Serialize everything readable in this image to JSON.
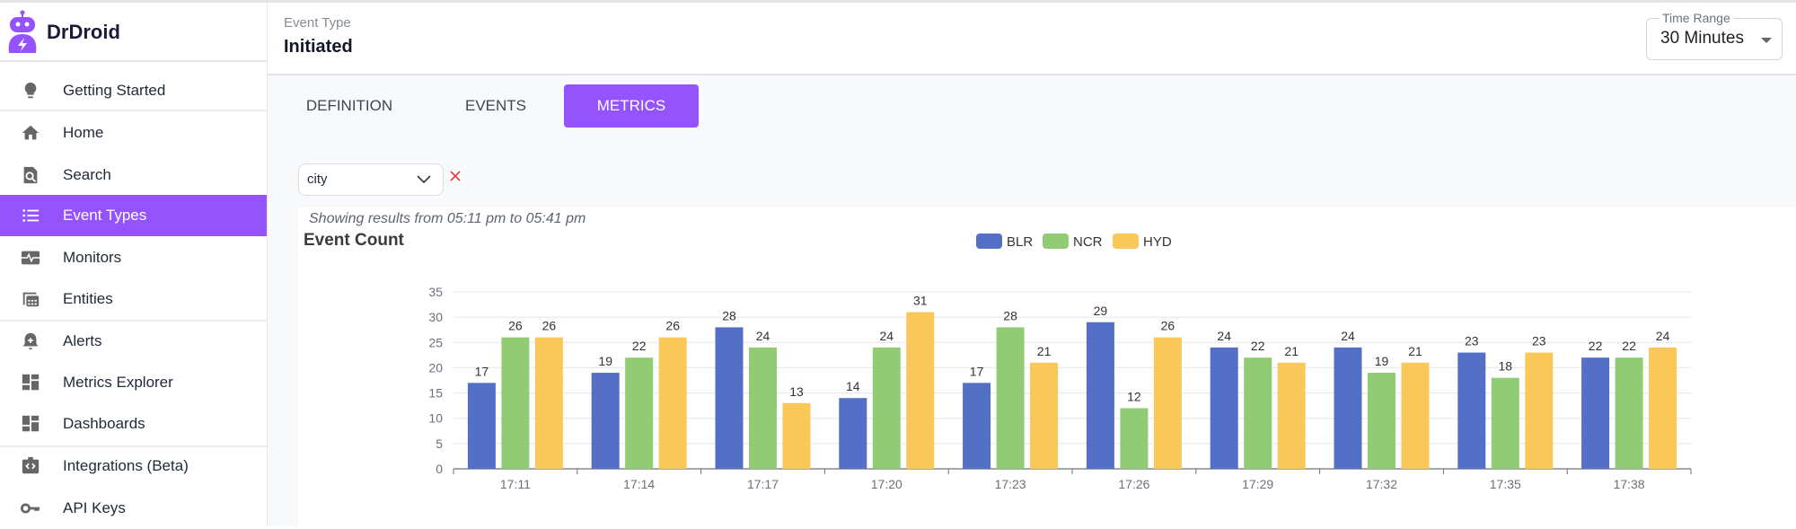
{
  "app": {
    "brand": "DrDroid"
  },
  "sidebar": {
    "items": [
      {
        "label": "Getting Started",
        "icon": "lightbulb-icon"
      },
      {
        "label": "Home",
        "icon": "home-icon"
      },
      {
        "label": "Search",
        "icon": "search-document-icon"
      },
      {
        "label": "Event Types",
        "icon": "list-icon",
        "active": true
      },
      {
        "label": "Monitors",
        "icon": "monitor-heartbeat-icon"
      },
      {
        "label": "Entities",
        "icon": "entities-grid-icon"
      },
      {
        "label": "Alerts",
        "icon": "bell-plus-icon"
      },
      {
        "label": "Metrics Explorer",
        "icon": "dashboard-grid-icon"
      },
      {
        "label": "Dashboards",
        "icon": "dashboard-grid-icon"
      },
      {
        "label": "Integrations (Beta)",
        "icon": "code-box-icon"
      },
      {
        "label": "API Keys",
        "icon": "key-icon"
      }
    ]
  },
  "header": {
    "label": "Event Type",
    "title": "Initiated",
    "time_range": {
      "label": "Time Range",
      "value": "30 Minutes"
    }
  },
  "tabs": [
    {
      "label": "DEFINITION",
      "active": false
    },
    {
      "label": "EVENTS",
      "active": false
    },
    {
      "label": "METRICS",
      "active": true
    }
  ],
  "filter": {
    "group_by": "city"
  },
  "colors": {
    "accent": "#9553fe",
    "BLR": "#5470c6",
    "NCR": "#91cc75",
    "HYD": "#fac858",
    "clear": "#e53935"
  },
  "chart_data": {
    "type": "bar",
    "subtitle": "Showing results from 05:11 pm to 05:41 pm",
    "title": "Event Count",
    "categories": [
      "17:11",
      "17:14",
      "17:17",
      "17:20",
      "17:23",
      "17:26",
      "17:29",
      "17:32",
      "17:35",
      "17:38"
    ],
    "series": [
      {
        "name": "BLR",
        "values": [
          17,
          19,
          28,
          14,
          17,
          29,
          24,
          24,
          23,
          22
        ]
      },
      {
        "name": "NCR",
        "values": [
          26,
          22,
          24,
          24,
          28,
          12,
          22,
          19,
          18,
          22
        ]
      },
      {
        "name": "HYD",
        "values": [
          26,
          26,
          13,
          31,
          21,
          26,
          21,
          21,
          23,
          24
        ]
      }
    ],
    "ylim": [
      0,
      35
    ],
    "yticks": [
      "0",
      "5",
      "10",
      "15",
      "20",
      "25",
      "30",
      "35"
    ],
    "grid": true,
    "legend": "top-center",
    "data_labels": true
  }
}
